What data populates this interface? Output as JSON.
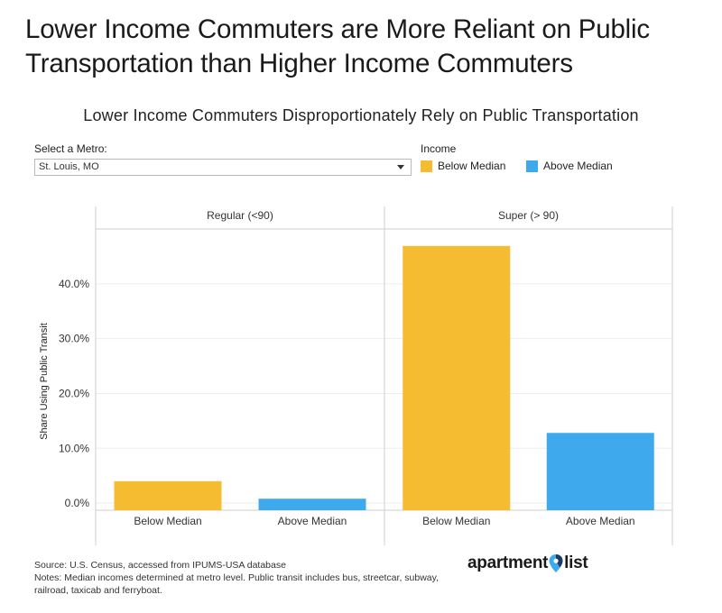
{
  "headline": "Lower Income Commuters are More Reliant on Public Transportation than Higher Income Commuters",
  "controls": {
    "metro_label": "Select a Metro:",
    "metro_value": "St. Louis, MO",
    "legend_title": "Income"
  },
  "colors": {
    "below_median": "#F5BC32",
    "above_median": "#3FA9EE",
    "grid": "#ededed",
    "axis": "#cfcfcf"
  },
  "chart_data": {
    "type": "bar",
    "title": "Lower Income Commuters Disproportionately Rely on Public Transportation",
    "ylabel": "Share Using Public Transit",
    "ylim": [
      -1.3,
      50
    ],
    "yticks": [
      0,
      10,
      20,
      30,
      40
    ],
    "ytick_labels": [
      "0.0%",
      "10.0%",
      "20.0%",
      "30.0%",
      "40.0%"
    ],
    "grid": true,
    "legend_position": "top",
    "series": [
      {
        "name": "Below Median"
      },
      {
        "name": "Above Median"
      }
    ],
    "panels": [
      {
        "label": "Regular (<90)",
        "categories": [
          "Below Median",
          "Above Median"
        ],
        "values": [
          4.0,
          0.8
        ]
      },
      {
        "label": "Super (> 90)",
        "categories": [
          "Below Median",
          "Above Median"
        ],
        "values": [
          46.9,
          12.8
        ]
      }
    ]
  },
  "footer": {
    "source": "Source: U.S. Census, accessed from IPUMS-USA database",
    "notes": "Notes: Median incomes determined at metro level. Public transit includes bus, streetcar, subway, railroad, taxicab and ferryboat.",
    "logo_left": "apartment",
    "logo_right": "list"
  }
}
